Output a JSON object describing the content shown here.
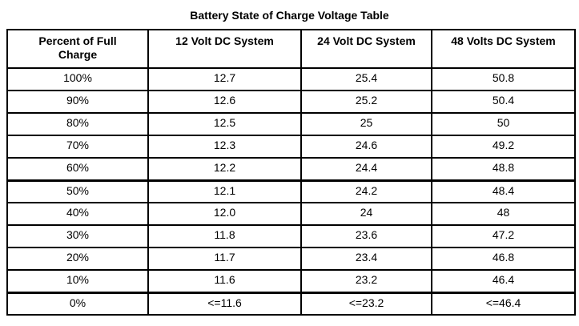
{
  "title": "Battery State of Charge Voltage Table",
  "table": {
    "headers": [
      "Percent of Full Charge",
      "12 Volt DC System",
      "24 Volt DC System",
      "48 Volts DC System"
    ],
    "rows": [
      [
        "100%",
        "12.7",
        "25.4",
        "50.8"
      ],
      [
        "90%",
        "12.6",
        "25.2",
        "50.4"
      ],
      [
        "80%",
        "12.5",
        "25",
        "50"
      ],
      [
        "70%",
        "12.3",
        "24.6",
        "49.2"
      ],
      [
        "60%",
        "12.2",
        "24.4",
        "48.8"
      ],
      [
        "50%",
        "12.1",
        "24.2",
        "48.4"
      ],
      [
        "40%",
        "12.0",
        "24",
        "48"
      ],
      [
        "30%",
        "11.8",
        "23.6",
        "47.2"
      ],
      [
        "20%",
        "11.7",
        "23.4",
        "46.8"
      ],
      [
        "10%",
        "11.6",
        "23.2",
        "46.4"
      ],
      [
        "0%",
        "<=11.6",
        "<=23.2",
        "<=46.4"
      ]
    ]
  }
}
